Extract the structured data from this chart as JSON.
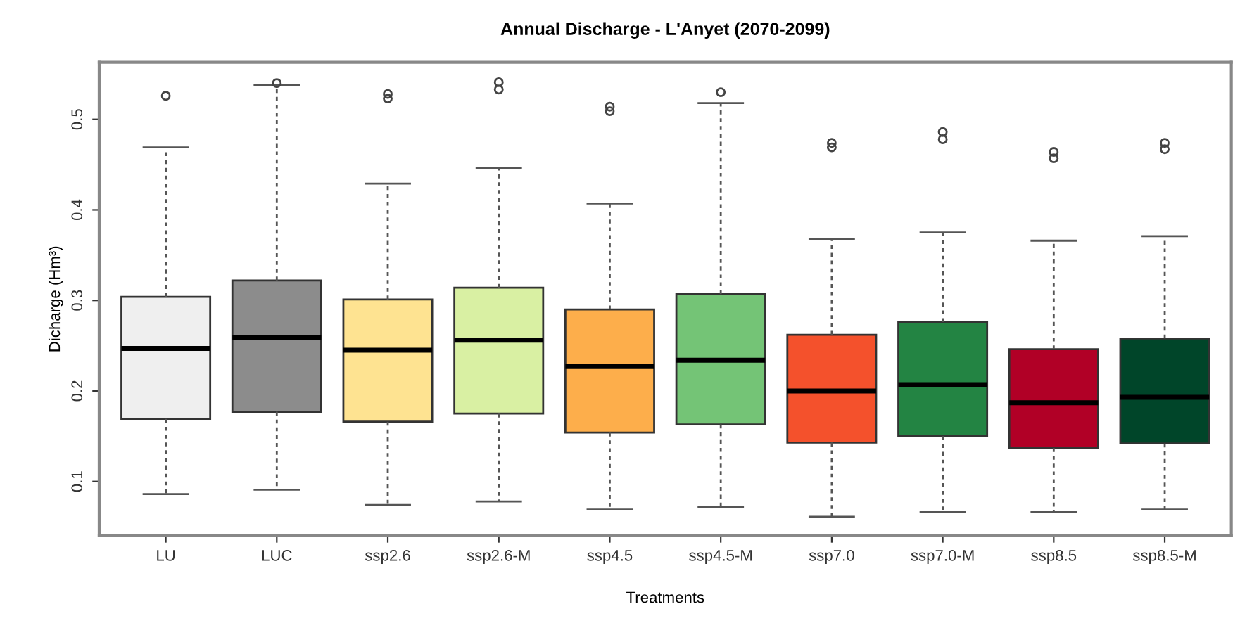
{
  "chart_data": {
    "type": "box",
    "title": "Annual Discharge - L'Anyet (2070-2099)",
    "xlabel": "Treatments",
    "ylabel": "Dicharge (Hm³)",
    "categories": [
      "LU",
      "LUC",
      "ssp2.6",
      "ssp2.6-M",
      "ssp4.5",
      "ssp4.5-M",
      "ssp7.0",
      "ssp7.0-M",
      "ssp8.5",
      "ssp8.5-M"
    ],
    "colors": [
      "#efefef",
      "#8c8c8c",
      "#fee391",
      "#d9f0a3",
      "#fdae4b",
      "#74c476",
      "#f4512c",
      "#238443",
      "#b10026",
      "#004529"
    ],
    "boxes": [
      {
        "low": 0.086,
        "q1": 0.169,
        "median": 0.247,
        "q3": 0.304,
        "high": 0.469,
        "outliers": [
          0.526
        ]
      },
      {
        "low": 0.091,
        "q1": 0.177,
        "median": 0.259,
        "q3": 0.322,
        "high": 0.538,
        "outliers": [
          0.54
        ]
      },
      {
        "low": 0.074,
        "q1": 0.166,
        "median": 0.245,
        "q3": 0.301,
        "high": 0.429,
        "outliers": [
          0.528,
          0.523
        ]
      },
      {
        "low": 0.078,
        "q1": 0.175,
        "median": 0.256,
        "q3": 0.314,
        "high": 0.446,
        "outliers": [
          0.541,
          0.533
        ]
      },
      {
        "low": 0.069,
        "q1": 0.154,
        "median": 0.227,
        "q3": 0.29,
        "high": 0.407,
        "outliers": [
          0.514,
          0.509
        ]
      },
      {
        "low": 0.072,
        "q1": 0.163,
        "median": 0.234,
        "q3": 0.307,
        "high": 0.518,
        "outliers": [
          0.53
        ]
      },
      {
        "low": 0.061,
        "q1": 0.143,
        "median": 0.2,
        "q3": 0.262,
        "high": 0.368,
        "outliers": [
          0.474,
          0.469
        ]
      },
      {
        "low": 0.066,
        "q1": 0.15,
        "median": 0.207,
        "q3": 0.276,
        "high": 0.375,
        "outliers": [
          0.486,
          0.478
        ]
      },
      {
        "low": 0.066,
        "q1": 0.137,
        "median": 0.187,
        "q3": 0.246,
        "high": 0.366,
        "outliers": [
          0.464,
          0.457
        ]
      },
      {
        "low": 0.069,
        "q1": 0.142,
        "median": 0.193,
        "q3": 0.258,
        "high": 0.371,
        "outliers": [
          0.474,
          0.467
        ]
      }
    ],
    "ylim": [
      0.04,
      0.563
    ],
    "yticks": [
      0.1,
      0.2,
      0.3,
      0.4,
      0.5
    ],
    "grid": false,
    "legend": false
  }
}
